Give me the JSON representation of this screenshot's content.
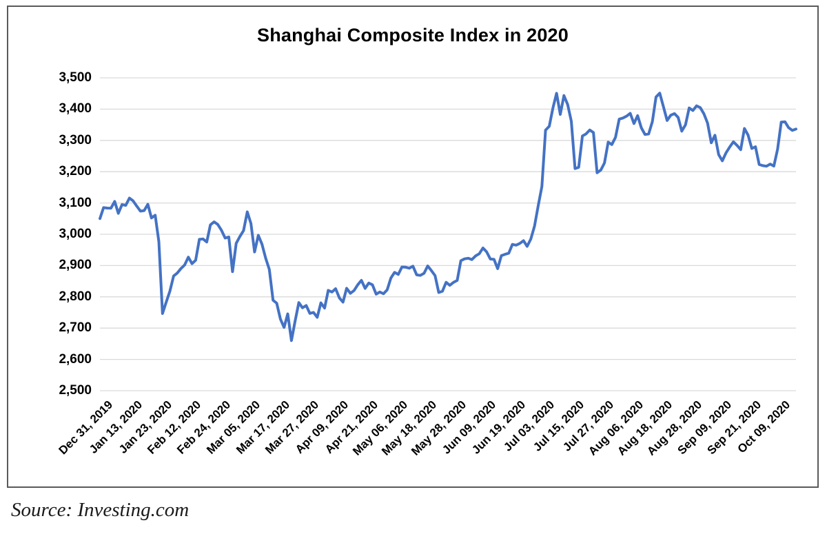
{
  "footer": {
    "source": "Source: Investing.com"
  },
  "chart_data": {
    "type": "line",
    "title": "Shanghai Composite Index in 2020",
    "series_name": "Shanghai Composite Index daily close",
    "xlabel": "",
    "ylabel": "",
    "ylim": [
      2500,
      3500
    ],
    "grid": "horizontal-only",
    "legend": "none",
    "line_color": "#4472C4",
    "grid_color": "#d9d9d9",
    "frame_color": "#595959",
    "y_ticks": [
      {
        "label": "3,500",
        "value": 3500
      },
      {
        "label": "3,400",
        "value": 3400
      },
      {
        "label": "3,300",
        "value": 3300
      },
      {
        "label": "3,200",
        "value": 3200
      },
      {
        "label": "3,100",
        "value": 3100
      },
      {
        "label": "3,000",
        "value": 3000
      },
      {
        "label": "2,900",
        "value": 2900
      },
      {
        "label": "2,800",
        "value": 2800
      },
      {
        "label": "2,700",
        "value": 2700
      },
      {
        "label": "2,600",
        "value": 2600
      },
      {
        "label": "2,500",
        "value": 2500
      }
    ],
    "x_tick_labels": [
      "Dec 31, 2019",
      "Jan 13, 2020",
      "Jan 23, 2020",
      "Feb 12, 2020",
      "Feb 24, 2020",
      "Mar 05, 2020",
      "Mar 17, 2020",
      "Mar 27, 2020",
      "Apr 09, 2020",
      "Apr 21, 2020",
      "May 06, 2020",
      "May 18, 2020",
      "May 28, 2020",
      "Jun 09, 2020",
      "Jun 19, 2020",
      "Jul 03, 2020",
      "Jul 15, 2020",
      "Jul 27, 2020",
      "Aug 06, 2020",
      "Aug 18, 2020",
      "Aug 28, 2020",
      "Sep 09, 2020",
      "Sep 21, 2020",
      "Oct 09, 2020"
    ],
    "tick_every": 8,
    "values": [
      3050.12,
      3085.2,
      3083.79,
      3083.41,
      3104.8,
      3066.89,
      3094.88,
      3092.29,
      3115.57,
      3106.82,
      3090.04,
      3074.08,
      3075.5,
      3095.79,
      3052.14,
      3060.75,
      2976.53,
      2746.61,
      2783.29,
      2818.09,
      2866.51,
      2875.96,
      2890.49,
      2901.67,
      2926.9,
      2906.07,
      2917.01,
      2983.62,
      2984.97,
      2975.4,
      3030.15,
      3039.67,
      3031.23,
      3013.05,
      2987.93,
      2991.33,
      2880.3,
      2970.93,
      2992.9,
      3011.67,
      3071.68,
      3034.51,
      2943.29,
      2996.76,
      2968.52,
      2923.49,
      2887.43,
      2789.25,
      2779.64,
      2728.76,
      2702.13,
      2745.62,
      2660.17,
      2722.44,
      2781.59,
      2764.91,
      2772.2,
      2747.21,
      2750.3,
      2734.52,
      2780.64,
      2763.99,
      2820.76,
      2815.37,
      2825.9,
      2796.63,
      2783.05,
      2827.28,
      2811.17,
      2819.94,
      2838.49,
      2852.55,
      2827.01,
      2843.98,
      2838.5,
      2808.53,
      2815.49,
      2810.02,
      2822.44,
      2860.08,
      2878.14,
      2871.52,
      2895.34,
      2894.8,
      2891.56,
      2898.05,
      2870.34,
      2868.46,
      2875.42,
      2898.58,
      2883.74,
      2867.92,
      2813.77,
      2817.97,
      2846.55,
      2836.8,
      2846.22,
      2852.35,
      2915.43,
      2921.4,
      2923.37,
      2919.25,
      2930.8,
      2937.77,
      2956.11,
      2943.75,
      2920.9,
      2919.74,
      2890.03,
      2931.75,
      2935.87,
      2939.32,
      2967.63,
      2965.27,
      2970.62,
      2979.55,
      2961.52,
      2984.67,
      3025.98,
      3090.57,
      3152.81,
      3332.88,
      3345.34,
      3403.44,
      3450.59,
      3383.32,
      3443.29,
      3414.62,
      3361.3,
      3210.1,
      3214.13,
      3314.15,
      3320.89,
      3333.16,
      3325.11,
      3196.77,
      3205.23,
      3227.96,
      3294.55,
      3286.82,
      3310.01,
      3367.97,
      3371.69,
      3377.56,
      3386.46,
      3354.04,
      3379.25,
      3340.29,
      3319.27,
      3320.73,
      3360.1,
      3438.8,
      3451.09,
      3408.13,
      3363.9,
      3380.68,
      3385.64,
      3373.58,
      3329.74,
      3350.11,
      3403.81,
      3395.68,
      3410.61,
      3404.8,
      3384.98,
      3355.37,
      3292.59,
      3316.42,
      3254.63,
      3234.82,
      3260.35,
      3278.81,
      3295.68,
      3283.92,
      3270.44,
      3338.09,
      3316.94,
      3274.3,
      3279.71,
      3223.18,
      3219.42,
      3217.53,
      3224.36,
      3218.05,
      3272.08,
      3358.47,
      3359.75,
      3340.78,
      3332.18,
      3336.36
    ]
  }
}
